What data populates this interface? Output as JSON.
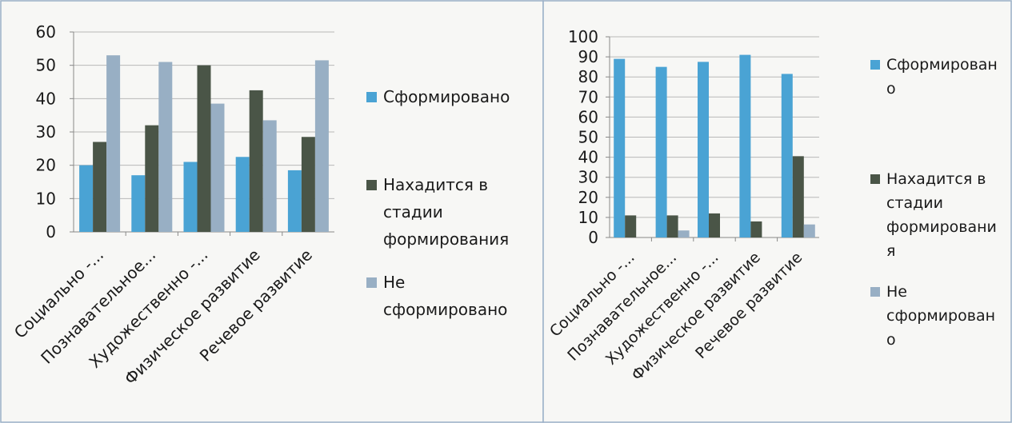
{
  "chart_data": [
    {
      "type": "bar",
      "categories": [
        "Социально -...",
        "Познавательное...",
        "Художественно -...",
        "Физическое развитие",
        "Речевое развитие"
      ],
      "series": [
        {
          "name": "Сформировано",
          "values": [
            20,
            17,
            21,
            22.5,
            18.5
          ],
          "color": "#4aa3d4"
        },
        {
          "name": "Нахадится в стадии формирования",
          "values": [
            27,
            32,
            50,
            42.5,
            28.5
          ],
          "color": "#4a5547"
        },
        {
          "name": "Не сформировано",
          "values": [
            53,
            51,
            38.5,
            33.5,
            51.5
          ],
          "color": "#98afc4"
        }
      ],
      "yticks": [
        0,
        10,
        20,
        30,
        40,
        50,
        60
      ],
      "ylim": [
        0,
        60
      ],
      "grid": true,
      "legend": "right",
      "legend_lines": [
        [
          "Сформировано"
        ],
        [
          "Нахадится в",
          "стадии",
          "формирования"
        ],
        [
          "Не",
          "сформировано"
        ]
      ]
    },
    {
      "type": "bar",
      "categories": [
        "Социально -...",
        "Познавательное...",
        "Художественно -...",
        "Физическое развитие",
        "Речевое развитие"
      ],
      "series": [
        {
          "name": "Сформировано",
          "values": [
            89,
            85,
            87.5,
            91,
            81.5
          ],
          "color": "#4aa3d4"
        },
        {
          "name": "Нахадится в стадии формирования",
          "values": [
            11,
            11,
            12,
            8,
            40.5
          ],
          "color": "#4a5547"
        },
        {
          "name": "Не сформировано",
          "values": [
            0,
            3.5,
            0,
            0,
            6.5
          ],
          "color": "#98afc4"
        }
      ],
      "yticks": [
        0,
        10,
        20,
        30,
        40,
        50,
        60,
        70,
        80,
        90,
        100
      ],
      "ylim": [
        0,
        100
      ],
      "grid": true,
      "legend": "right",
      "legend_lines": [
        [
          "Сформирован",
          "о"
        ],
        [
          "Нахадится в",
          "стадии",
          "формировани",
          "я"
        ],
        [
          "Не",
          "сформирован",
          "о"
        ]
      ]
    }
  ]
}
